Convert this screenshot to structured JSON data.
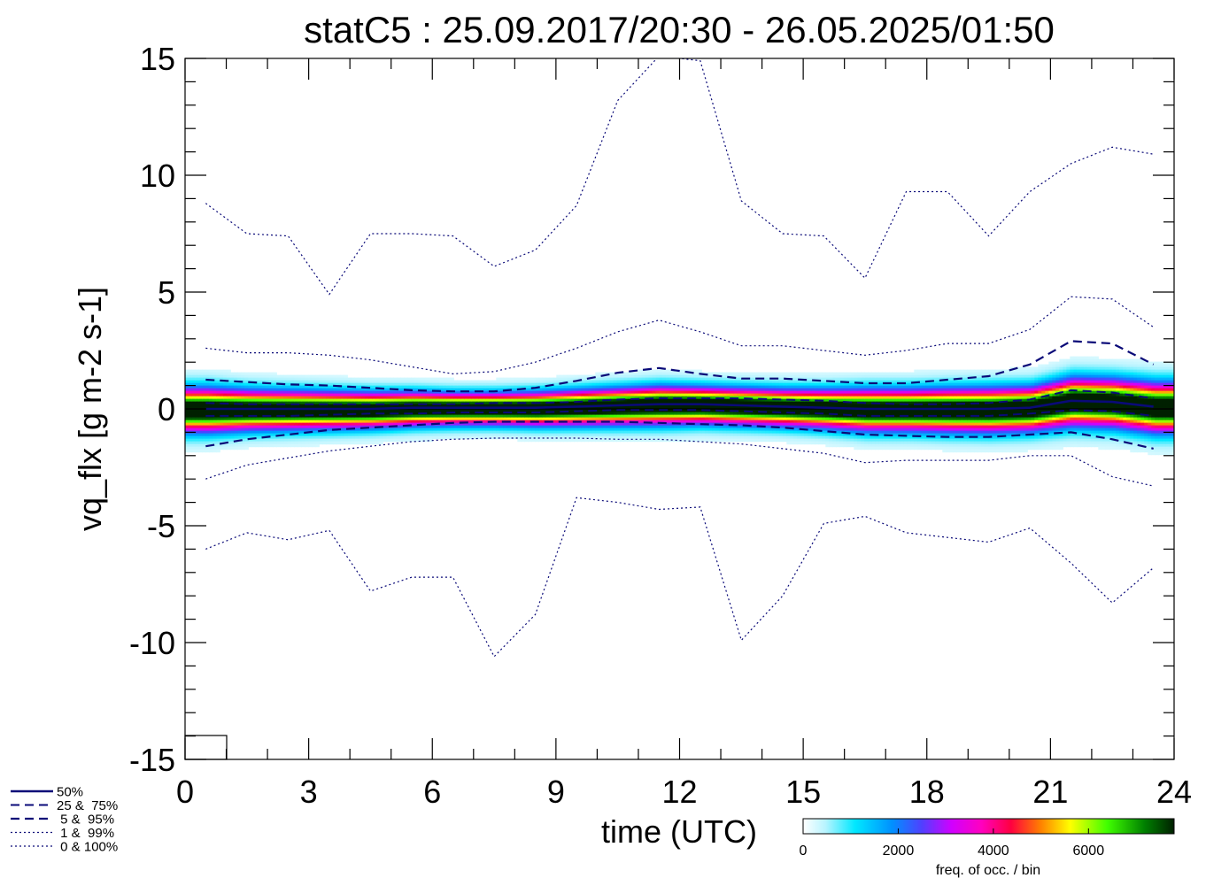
{
  "chart_data": {
    "type": "heatmap",
    "title": "statC5 : 25.09.2017/20:30 - 26.05.2025/01:50",
    "xlabel": "time (UTC)",
    "ylabel": "vq_flx [g m-2 s-1]",
    "xlim": [
      0,
      24
    ],
    "ylim": [
      -15,
      15
    ],
    "x_ticks": [
      0,
      3,
      6,
      9,
      12,
      15,
      18,
      21,
      24
    ],
    "x_tick_labels": [
      "0",
      "3",
      "6",
      "9",
      "12",
      "15",
      "18",
      "21",
      "24"
    ],
    "y_ticks": [
      -15,
      -10,
      -5,
      0,
      5,
      10,
      15
    ],
    "y_tick_labels": [
      "-15",
      "-10",
      "-5",
      "0",
      "5",
      "10",
      "15"
    ],
    "x": [
      0.5,
      1.5,
      2.5,
      3.5,
      4.5,
      5.5,
      6.5,
      7.5,
      8.5,
      9.5,
      10.5,
      11.5,
      12.5,
      13.5,
      14.5,
      15.5,
      16.5,
      17.5,
      18.5,
      19.5,
      20.5,
      21.5,
      22.5,
      23.5
    ],
    "series": [
      {
        "name": "50%",
        "style": "solid",
        "values": [
          0.0,
          0.0,
          0.0,
          0.0,
          0.0,
          0.05,
          0.05,
          0.05,
          0.05,
          0.1,
          0.15,
          0.2,
          0.2,
          0.15,
          0.1,
          0.05,
          0.0,
          0.0,
          0.0,
          0.0,
          0.05,
          0.35,
          0.3,
          0.1
        ]
      },
      {
        "name": "25%",
        "style": "dashed-thin",
        "values": [
          -0.3,
          -0.3,
          -0.3,
          -0.25,
          -0.2,
          -0.2,
          -0.15,
          -0.15,
          -0.15,
          -0.1,
          -0.05,
          -0.05,
          -0.05,
          -0.1,
          -0.15,
          -0.2,
          -0.3,
          -0.3,
          -0.3,
          -0.3,
          -0.2,
          -0.05,
          -0.1,
          -0.3
        ]
      },
      {
        "name": "75%",
        "style": "dashed-thin",
        "values": [
          0.25,
          0.2,
          0.2,
          0.2,
          0.2,
          0.2,
          0.2,
          0.25,
          0.25,
          0.3,
          0.4,
          0.45,
          0.45,
          0.45,
          0.4,
          0.35,
          0.25,
          0.2,
          0.2,
          0.25,
          0.4,
          0.8,
          0.7,
          0.45
        ]
      },
      {
        "name": "5%",
        "style": "dashed",
        "values": [
          -1.6,
          -1.3,
          -1.1,
          -0.9,
          -0.8,
          -0.7,
          -0.6,
          -0.55,
          -0.55,
          -0.55,
          -0.55,
          -0.6,
          -0.65,
          -0.7,
          -0.8,
          -0.95,
          -1.1,
          -1.15,
          -1.2,
          -1.2,
          -1.1,
          -1.0,
          -1.3,
          -1.7
        ]
      },
      {
        "name": "95%",
        "style": "dashed",
        "values": [
          1.25,
          1.15,
          1.05,
          1.0,
          0.9,
          0.8,
          0.75,
          0.75,
          0.9,
          1.2,
          1.55,
          1.75,
          1.5,
          1.3,
          1.3,
          1.2,
          1.1,
          1.1,
          1.25,
          1.4,
          1.9,
          2.9,
          2.8,
          1.9
        ]
      },
      {
        "name": "1%",
        "style": "dotted",
        "values": [
          -3.0,
          -2.4,
          -2.1,
          -1.8,
          -1.6,
          -1.4,
          -1.3,
          -1.25,
          -1.25,
          -1.25,
          -1.3,
          -1.3,
          -1.4,
          -1.5,
          -1.7,
          -1.9,
          -2.3,
          -2.2,
          -2.2,
          -2.2,
          -2.0,
          -2.0,
          -2.9,
          -3.3
        ]
      },
      {
        "name": "99%",
        "style": "dotted",
        "values": [
          2.6,
          2.4,
          2.4,
          2.3,
          2.1,
          1.8,
          1.5,
          1.6,
          2.0,
          2.6,
          3.3,
          3.8,
          3.3,
          2.7,
          2.7,
          2.5,
          2.3,
          2.5,
          2.8,
          2.8,
          3.4,
          4.8,
          4.7,
          3.5
        ]
      },
      {
        "name": "0%",
        "style": "dotted",
        "values": [
          -6.0,
          -5.3,
          -5.6,
          -5.2,
          -7.8,
          -7.2,
          -7.2,
          -10.6,
          -8.8,
          -3.8,
          -4.0,
          -4.3,
          -4.2,
          -9.9,
          -8.0,
          -4.9,
          -4.6,
          -5.3,
          -5.5,
          -5.7,
          -5.1,
          -6.6,
          -8.3,
          -6.8
        ]
      },
      {
        "name": "100%",
        "style": "dotted",
        "values": [
          8.8,
          7.5,
          7.4,
          4.9,
          7.5,
          7.5,
          7.4,
          6.1,
          6.8,
          8.7,
          13.2,
          15.1,
          14.9,
          8.9,
          7.5,
          7.4,
          5.6,
          9.3,
          9.3,
          7.4,
          9.3,
          10.5,
          11.2,
          10.9
        ]
      }
    ],
    "density": {
      "center": [
        0.0,
        0.0,
        0.0,
        0.0,
        0.0,
        0.05,
        0.05,
        0.05,
        0.05,
        0.1,
        0.15,
        0.2,
        0.2,
        0.15,
        0.1,
        0.05,
        0.0,
        0.0,
        0.0,
        0.0,
        0.05,
        0.35,
        0.3,
        0.1
      ],
      "spread": [
        0.55,
        0.5,
        0.48,
        0.46,
        0.44,
        0.42,
        0.4,
        0.4,
        0.42,
        0.44,
        0.46,
        0.48,
        0.46,
        0.46,
        0.46,
        0.48,
        0.52,
        0.52,
        0.54,
        0.55,
        0.55,
        0.6,
        0.6,
        0.62
      ]
    },
    "colorbar": {
      "label": "freq. of occ. / bin",
      "ticks": [
        0,
        2000,
        4000,
        6000
      ],
      "tick_labels": [
        "0",
        "2000",
        "4000",
        "6000"
      ],
      "max": 7800
    },
    "legend": {
      "placement": "bottom-left",
      "entries": [
        {
          "label": "50%",
          "style": "solid"
        },
        {
          "label": "25 &  75%",
          "style": "dashed-thin"
        },
        {
          "label": " 5 &  95%",
          "style": "dashed"
        },
        {
          "label": " 1 &  99%",
          "style": "dotted"
        },
        {
          "label": " 0 & 100%",
          "style": "dotted"
        }
      ]
    },
    "colors": {
      "lines": "#0a0a78",
      "axis": "#000000",
      "zero_line": "#000000"
    }
  }
}
